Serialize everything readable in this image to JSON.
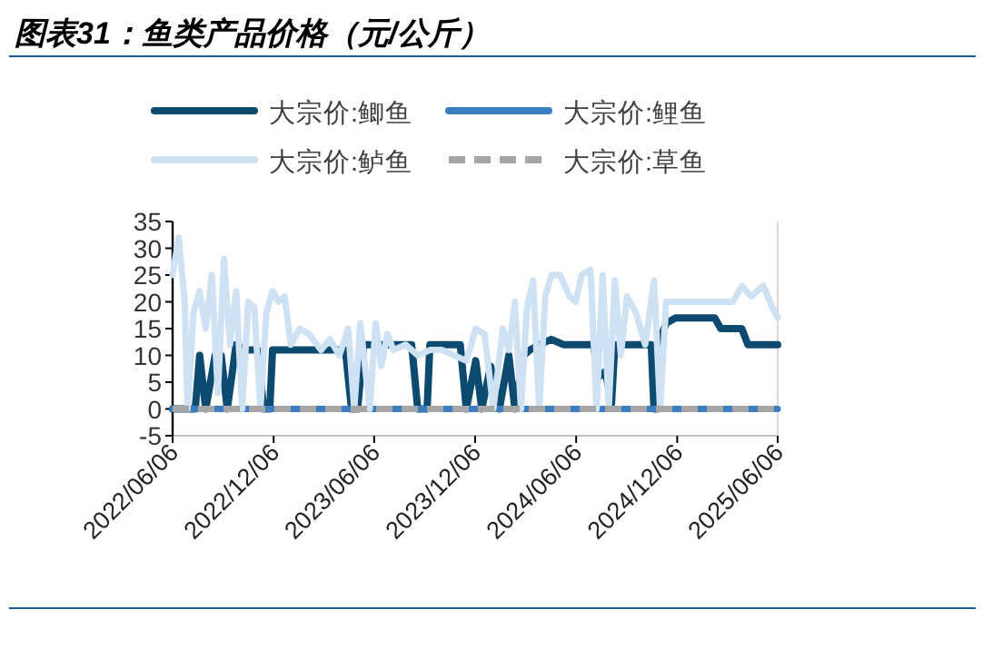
{
  "chart_data": {
    "type": "line",
    "title": "图表31：鱼类产品价格（元/公斤）",
    "legend": "top",
    "xlim": [
      "2022-06-06",
      "2025-06-06"
    ],
    "xticks": [
      {
        "value": "2022-06-06",
        "label": "2022/06/06"
      },
      {
        "value": "2022-12-06",
        "label": "2022/12/06"
      },
      {
        "value": "2023-06-06",
        "label": "2023/06/06"
      },
      {
        "value": "2023-12-06",
        "label": "2023/12/06"
      },
      {
        "value": "2024-06-06",
        "label": "2024/06/06"
      },
      {
        "value": "2024-12-06",
        "label": "2024/12/06"
      },
      {
        "value": "2025-06-06",
        "label": "2025/06/06"
      }
    ],
    "ylim": [
      -5,
      35
    ],
    "yticks": [
      -5,
      0,
      5,
      10,
      15,
      20,
      25,
      30,
      35
    ],
    "series": [
      {
        "name": "大宗价:鲫鱼",
        "color": "#0d4a70",
        "x": [
          "2022-06-06",
          "2022-07-17",
          "2022-07-25",
          "2022-08-05",
          "2022-08-22",
          "2022-09-02",
          "2022-09-13",
          "2022-09-29",
          "2022-10-16",
          "2022-11-07",
          "2022-11-18",
          "2022-11-29",
          "2022-12-04",
          "2023-04-15",
          "2023-04-26",
          "2023-05-07",
          "2023-05-18",
          "2023-08-13",
          "2023-08-24",
          "2023-09-10",
          "2023-09-15",
          "2023-11-09",
          "2023-11-20",
          "2023-12-07",
          "2023-12-18",
          "2024-01-03",
          "2024-01-19",
          "2024-02-05",
          "2024-02-16",
          "2024-03-03",
          "2024-03-14",
          "2024-03-31",
          "2024-04-22",
          "2024-05-14",
          "2024-07-07",
          "2024-07-18",
          "2024-07-29",
          "2024-08-09",
          "2024-08-15",
          "2024-10-20",
          "2024-10-25",
          "2024-10-31",
          "2024-11-05",
          "2024-11-16",
          "2024-12-03",
          "2025-02-12",
          "2025-02-23",
          "2025-04-02",
          "2025-04-13",
          "2025-06-06"
        ],
        "values": [
          0,
          0,
          10,
          0,
          10,
          10,
          0,
          12,
          11,
          11,
          0,
          0,
          11,
          11,
          0,
          0,
          12,
          12,
          0,
          0,
          12,
          12,
          0,
          9,
          0,
          8,
          0,
          10,
          0,
          10,
          11,
          12,
          13,
          12,
          12,
          6,
          7,
          1,
          12,
          12,
          0,
          0,
          13,
          16,
          17,
          17,
          15,
          15,
          12,
          12
        ]
      },
      {
        "name": "大宗价:鲤鱼",
        "color": "#3a7dc0",
        "x": [
          "2022-06-06",
          "2025-06-06"
        ],
        "values": [
          0,
          0
        ]
      },
      {
        "name": "大宗价:鲈鱼",
        "color": "#cfe2f3",
        "x": [
          "2022-06-06",
          "2022-06-17",
          "2022-06-28",
          "2022-07-03",
          "2022-07-14",
          "2022-07-25",
          "2022-08-05",
          "2022-08-16",
          "2022-08-27",
          "2022-09-07",
          "2022-09-18",
          "2022-09-29",
          "2022-10-10",
          "2022-10-21",
          "2022-11-01",
          "2022-11-12",
          "2022-11-23",
          "2022-12-04",
          "2022-12-15",
          "2022-12-26",
          "2023-01-06",
          "2023-01-22",
          "2023-02-08",
          "2023-03-02",
          "2023-03-18",
          "2023-04-04",
          "2023-04-20",
          "2023-05-01",
          "2023-05-12",
          "2023-05-29",
          "2023-06-09",
          "2023-06-19",
          "2023-06-30",
          "2023-07-11",
          "2023-08-02",
          "2023-08-24",
          "2023-09-15",
          "2023-10-07",
          "2023-10-29",
          "2023-11-20",
          "2023-12-07",
          "2023-12-23",
          "2024-01-08",
          "2024-01-25",
          "2024-02-05",
          "2024-02-16",
          "2024-02-27",
          "2024-03-09",
          "2024-03-20",
          "2024-03-31",
          "2024-04-11",
          "2024-04-22",
          "2024-05-08",
          "2024-05-25",
          "2024-06-05",
          "2024-06-16",
          "2024-07-02",
          "2024-07-13",
          "2024-07-24",
          "2024-08-04",
          "2024-08-15",
          "2024-08-26",
          "2024-09-06",
          "2024-09-22",
          "2024-10-09",
          "2024-10-25",
          "2024-11-05",
          "2024-11-16",
          "2024-12-19",
          "2025-01-21",
          "2025-02-23",
          "2025-03-17",
          "2025-04-02",
          "2025-04-19",
          "2025-05-11",
          "2025-05-27",
          "2025-06-06"
        ],
        "values": [
          25,
          32,
          20,
          0,
          18,
          22,
          15,
          25,
          3,
          28,
          12,
          22,
          0,
          20,
          19,
          0,
          18,
          22,
          20,
          21,
          12,
          15,
          14,
          11,
          13,
          10,
          15,
          0,
          16,
          0,
          16,
          8,
          14,
          11,
          12,
          10,
          11,
          11,
          10,
          9,
          15,
          14,
          0,
          15,
          11,
          20,
          0,
          19,
          24,
          0,
          21,
          25,
          25,
          21,
          20,
          25,
          26,
          0,
          25,
          0,
          24,
          10,
          21,
          18,
          12,
          24,
          0,
          20,
          20,
          20,
          20,
          20,
          23,
          21,
          23,
          19,
          17
        ]
      },
      {
        "name": "大宗价:草鱼",
        "color": "#a6a6a6",
        "line_style": "dashed",
        "x": [
          "2022-06-06",
          "2025-06-06"
        ],
        "values": [
          0,
          0
        ]
      }
    ]
  }
}
